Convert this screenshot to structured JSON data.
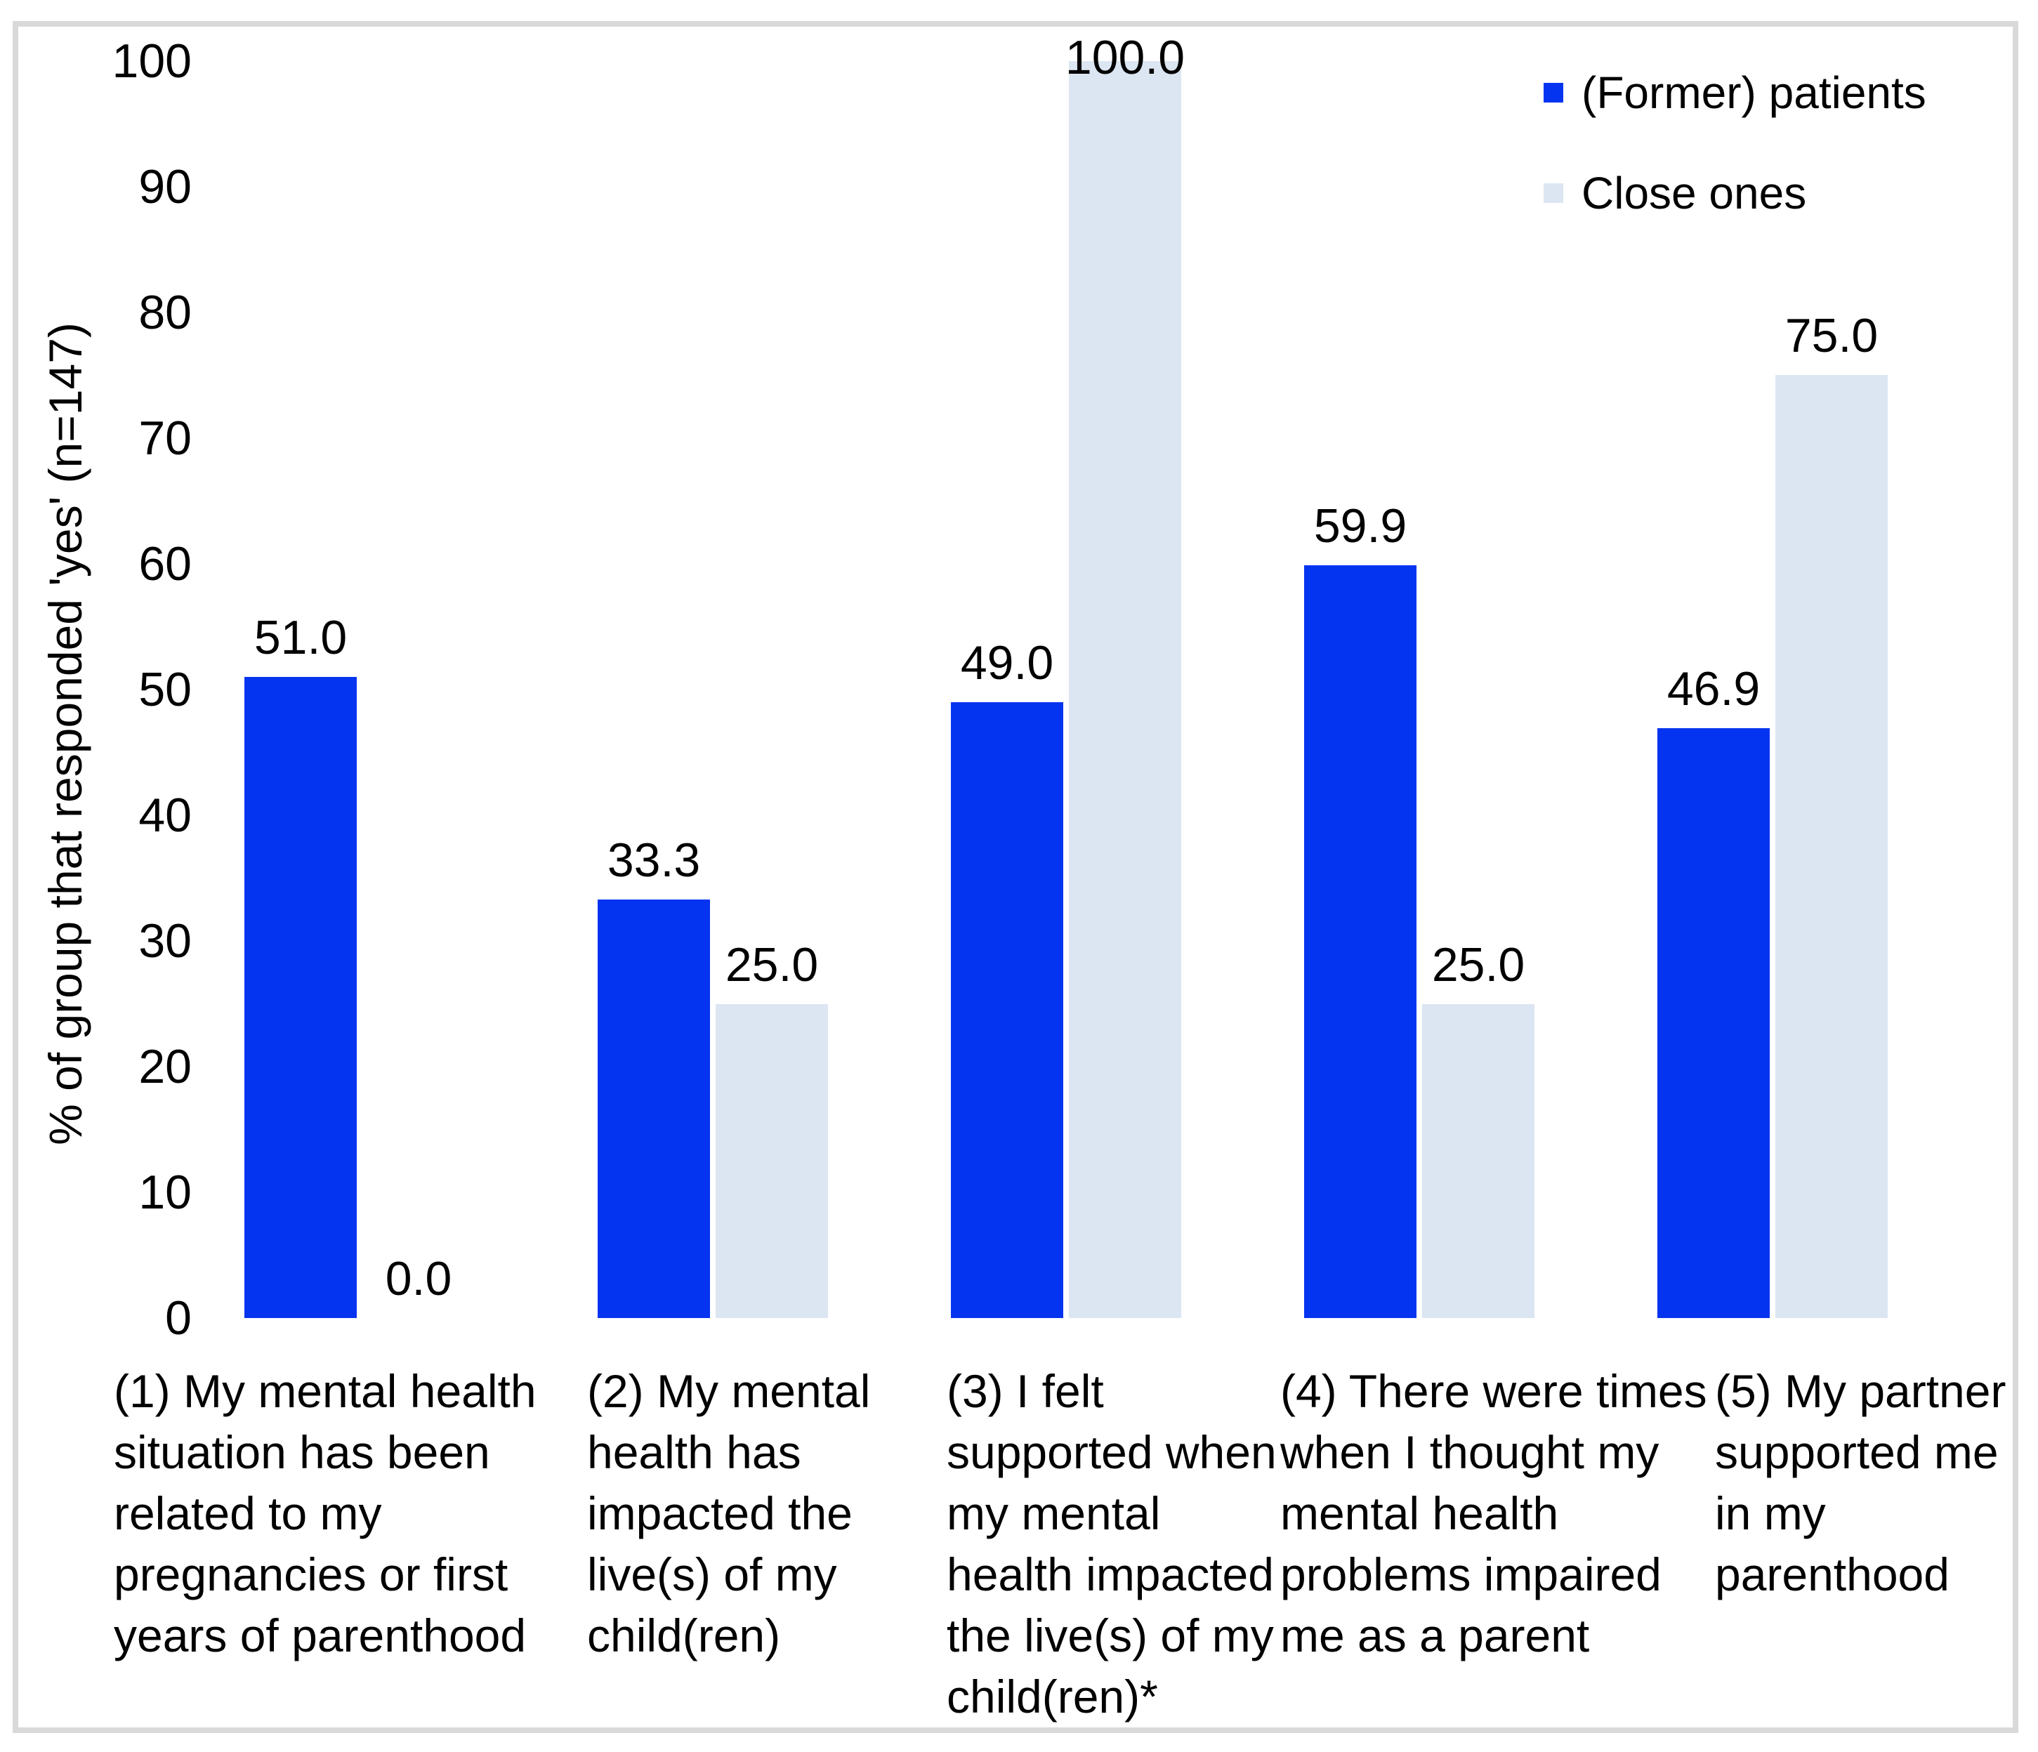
{
  "figure": {
    "background": "#FFFFFF",
    "border_color": "#D9D9D9"
  },
  "legend": {
    "items": [
      {
        "label": "(Former) patients",
        "color": "#0534F0"
      },
      {
        "label": "Close ones",
        "color": "#DCE6F2"
      }
    ]
  },
  "chart_data": {
    "type": "bar",
    "title": "",
    "xlabel": "",
    "ylabel": "% of group that responded 'yes' (n=147)",
    "ylim": [
      0,
      100
    ],
    "yticks": [
      0,
      10,
      20,
      30,
      40,
      50,
      60,
      70,
      80,
      90,
      100
    ],
    "grid": false,
    "legend_position": "top-right",
    "value_label_decimals": 1,
    "categories": [
      "(1) My mental health\nsituation has been\nrelated to my\npregnancies or first\nyears of parenthood",
      "(2) My mental\nhealth has\nimpacted the\nlive(s) of my\nchild(ren)",
      "(3) I felt\nsupported when\nmy mental\nhealth impacted\nthe live(s) of my\nchild(ren)*",
      "(4) There were times\nwhen I thought my\nmental health\nproblems impaired\nme as a parent",
      "(5) My partner\nsupported me\nin my\nparenthood"
    ],
    "series": [
      {
        "name": "(Former) patients",
        "color": "#0534F0",
        "values": [
          51.0,
          33.3,
          49.0,
          59.9,
          46.9
        ]
      },
      {
        "name": "Close ones",
        "color": "#DCE6F2",
        "values": [
          0.0,
          25.0,
          100.0,
          25.0,
          75.0
        ]
      }
    ]
  }
}
